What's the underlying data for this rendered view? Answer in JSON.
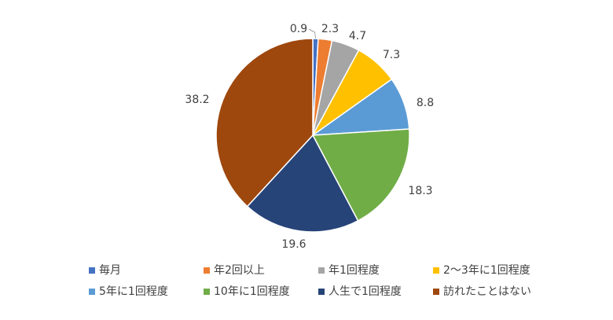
{
  "chart_data": {
    "type": "pie",
    "categories": [
      "毎月",
      "年2回以上",
      "年1回程度",
      "2〜3年に1回程度",
      "5年に1回程度",
      "10年に1回程度",
      "人生で1回程度",
      "訪れたことはない"
    ],
    "values": [
      0.9,
      2.3,
      4.7,
      7.3,
      8.8,
      18.3,
      19.6,
      38.2
    ],
    "value_labels": [
      "0.9",
      "2.3",
      "4.7",
      "7.3",
      "8.8",
      "18.3",
      "19.6",
      "38.2"
    ],
    "colors": [
      "#4472C4",
      "#ED7D31",
      "#A5A5A5",
      "#FFC000",
      "#5B9BD5",
      "#70AD47",
      "#264478",
      "#9E480E"
    ],
    "legend_position": "bottom",
    "start_angle": "12 o'clock",
    "direction": "clockwise"
  }
}
